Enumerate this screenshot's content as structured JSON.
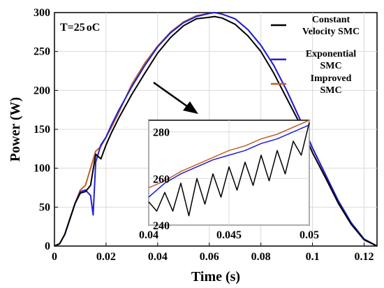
{
  "chart_data": {
    "type": "line",
    "annotation": "T=25",
    "annotation_unit": "oC",
    "xlabel": "Time (s)",
    "ylabel": "Power (W)",
    "xlim": [
      0,
      0.125
    ],
    "ylim": [
      0,
      300
    ],
    "xticks": [
      "0",
      "0.02",
      "0.04",
      "0.06",
      "0.08",
      "0.1",
      "0.12"
    ],
    "xtick_values": [
      0,
      0.02,
      0.04,
      0.06,
      0.08,
      0.1,
      0.12
    ],
    "yticks": [
      "0",
      "50",
      "100",
      "150",
      "200",
      "250",
      "300"
    ],
    "ytick_values": [
      0,
      50,
      100,
      150,
      200,
      250,
      300
    ],
    "grid": true,
    "legend_position": "top-right",
    "series": [
      {
        "name": "Constant Velocity SMC",
        "legend_lines": [
          "Constant",
          "Velocity SMC"
        ],
        "color": "#000000",
        "x": [
          0,
          0.002,
          0.004,
          0.006,
          0.008,
          0.01,
          0.012,
          0.014,
          0.016,
          0.018,
          0.02,
          0.022,
          0.025,
          0.03,
          0.035,
          0.04,
          0.045,
          0.05,
          0.055,
          0.06,
          0.062,
          0.065,
          0.07,
          0.075,
          0.08,
          0.085,
          0.09,
          0.095,
          0.1,
          0.105,
          0.11,
          0.115,
          0.12,
          0.125
        ],
        "y": [
          0,
          3,
          15,
          35,
          55,
          68,
          70,
          78,
          118,
          112,
          130,
          145,
          165,
          195,
          222,
          248,
          268,
          283,
          292,
          294,
          295,
          293,
          285,
          270,
          250,
          222,
          190,
          158,
          120,
          88,
          55,
          28,
          8,
          0
        ]
      },
      {
        "name": "Exponential SMC",
        "legend_lines": [
          "Exponential",
          "SMC"
        ],
        "color": "#1f1fd6",
        "x": [
          0,
          0.002,
          0.004,
          0.006,
          0.008,
          0.01,
          0.012,
          0.014,
          0.015,
          0.016,
          0.018,
          0.02,
          0.022,
          0.025,
          0.03,
          0.035,
          0.04,
          0.045,
          0.05,
          0.055,
          0.06,
          0.062,
          0.065,
          0.07,
          0.075,
          0.08,
          0.085,
          0.09,
          0.095,
          0.1,
          0.105,
          0.11,
          0.115,
          0.12,
          0.125
        ],
        "y": [
          0,
          3,
          15,
          35,
          55,
          70,
          72,
          65,
          40,
          108,
          130,
          140,
          155,
          175,
          205,
          232,
          256,
          274,
          287,
          295,
          299,
          300,
          298,
          292,
          278,
          258,
          232,
          200,
          164,
          126,
          92,
          58,
          30,
          9,
          0
        ]
      },
      {
        "name": "Improved SMC",
        "legend_lines": [
          "Improved",
          "SMC"
        ],
        "color": "#c0602a",
        "x": [
          0,
          0.002,
          0.004,
          0.006,
          0.008,
          0.01,
          0.012,
          0.014,
          0.016,
          0.018,
          0.02,
          0.022,
          0.025,
          0.03,
          0.035,
          0.04,
          0.045,
          0.05,
          0.055,
          0.06,
          0.062,
          0.065,
          0.07,
          0.075,
          0.08,
          0.085,
          0.09,
          0.095,
          0.1,
          0.105,
          0.11,
          0.115,
          0.12,
          0.125
        ],
        "y": [
          0,
          3,
          15,
          35,
          55,
          72,
          78,
          100,
          122,
          128,
          140,
          152,
          172,
          208,
          235,
          257,
          275,
          288,
          296,
          299,
          300,
          298,
          292,
          278,
          258,
          232,
          200,
          164,
          126,
          92,
          58,
          30,
          9,
          0
        ]
      }
    ],
    "inset": {
      "xlim": [
        0.04,
        0.05
      ],
      "ylim": [
        240,
        285
      ],
      "xticks": [
        "0.04",
        "0.045",
        "0.05"
      ],
      "xtick_values": [
        0.04,
        0.045,
        0.05
      ],
      "yticks": [
        "240",
        "260",
        "280"
      ],
      "ytick_values": [
        240,
        260,
        280
      ],
      "series": [
        {
          "name": "Constant Velocity SMC",
          "x": [
            0.04,
            0.0405,
            0.041,
            0.0415,
            0.042,
            0.0425,
            0.043,
            0.0435,
            0.044,
            0.0445,
            0.045,
            0.0455,
            0.046,
            0.0465,
            0.047,
            0.0475,
            0.048,
            0.0485,
            0.049,
            0.0495,
            0.05
          ],
          "y": [
            250,
            246,
            254,
            246,
            258,
            244,
            260,
            249,
            262,
            252,
            265,
            255,
            267,
            257,
            270,
            259,
            272,
            262,
            276,
            270,
            284
          ]
        },
        {
          "name": "Exponential SMC",
          "x": [
            0.04,
            0.041,
            0.042,
            0.043,
            0.044,
            0.045,
            0.046,
            0.047,
            0.048,
            0.049,
            0.05
          ],
          "y": [
            252,
            258,
            262,
            265,
            268,
            270,
            272,
            275,
            277,
            280,
            283
          ]
        },
        {
          "name": "Improved SMC",
          "x": [
            0.04,
            0.041,
            0.042,
            0.043,
            0.044,
            0.045,
            0.046,
            0.047,
            0.048,
            0.049,
            0.05
          ],
          "y": [
            256,
            259,
            263,
            266,
            269,
            272,
            274,
            277,
            279,
            282,
            285
          ]
        }
      ]
    }
  }
}
